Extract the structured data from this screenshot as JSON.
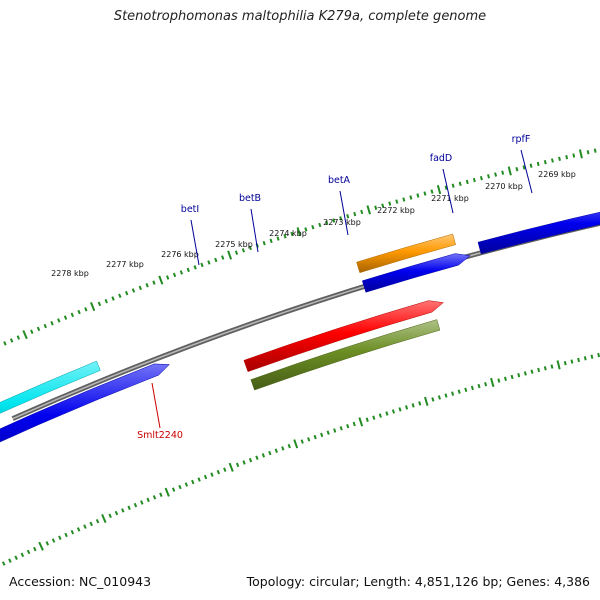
{
  "title": "Stenotrophomonas maltophilia K279a, complete genome",
  "footer": {
    "accession": "Accession: NC_010943",
    "summary": "Topology: circular; Length: 4,851,126 bp; Genes: 4,386"
  },
  "ticks": [
    {
      "label": "2278 kbp"
    },
    {
      "label": "2277 kbp"
    },
    {
      "label": "2276 kbp"
    },
    {
      "label": "2275 kbp"
    },
    {
      "label": "2274 kbp"
    },
    {
      "label": "2273 kbp"
    },
    {
      "label": "2272 kbp"
    },
    {
      "label": "2271 kbp"
    },
    {
      "label": "2270 kbp"
    },
    {
      "label": "2269 kbp"
    }
  ],
  "gene_labels": [
    {
      "label": "betI",
      "color": "#000099"
    },
    {
      "label": "betB",
      "color": "#000099"
    },
    {
      "label": "betA",
      "color": "#000099"
    },
    {
      "label": "fadD",
      "color": "#000099"
    },
    {
      "label": "rpfF",
      "color": "#000099"
    },
    {
      "label": "Smlt2240",
      "color": "#cc0000"
    }
  ],
  "features": [
    {
      "name": "cyan-feature",
      "color": "#00e5ee"
    },
    {
      "name": "orange-feature",
      "color": "#ff9900"
    },
    {
      "name": "steelblue-feature",
      "color": "#4682b4"
    },
    {
      "name": "purple-feature",
      "color": "#6a5acd"
    },
    {
      "name": "lavender-feature",
      "color": "#7b68ee"
    },
    {
      "name": "red-feature",
      "color": "#ff0000"
    },
    {
      "name": "olive-feature",
      "color": "#6b8e23"
    },
    {
      "name": "green-feature",
      "color": "#22dd22"
    },
    {
      "name": "cds-feature",
      "color": "#0000ee"
    },
    {
      "name": "navy-feature",
      "color": "#000080"
    }
  ],
  "colors": {
    "backbone": "#808080",
    "tick_mark": "#228b22",
    "label_line_top": "#000099",
    "label_line_bottom": "#cc0000"
  }
}
